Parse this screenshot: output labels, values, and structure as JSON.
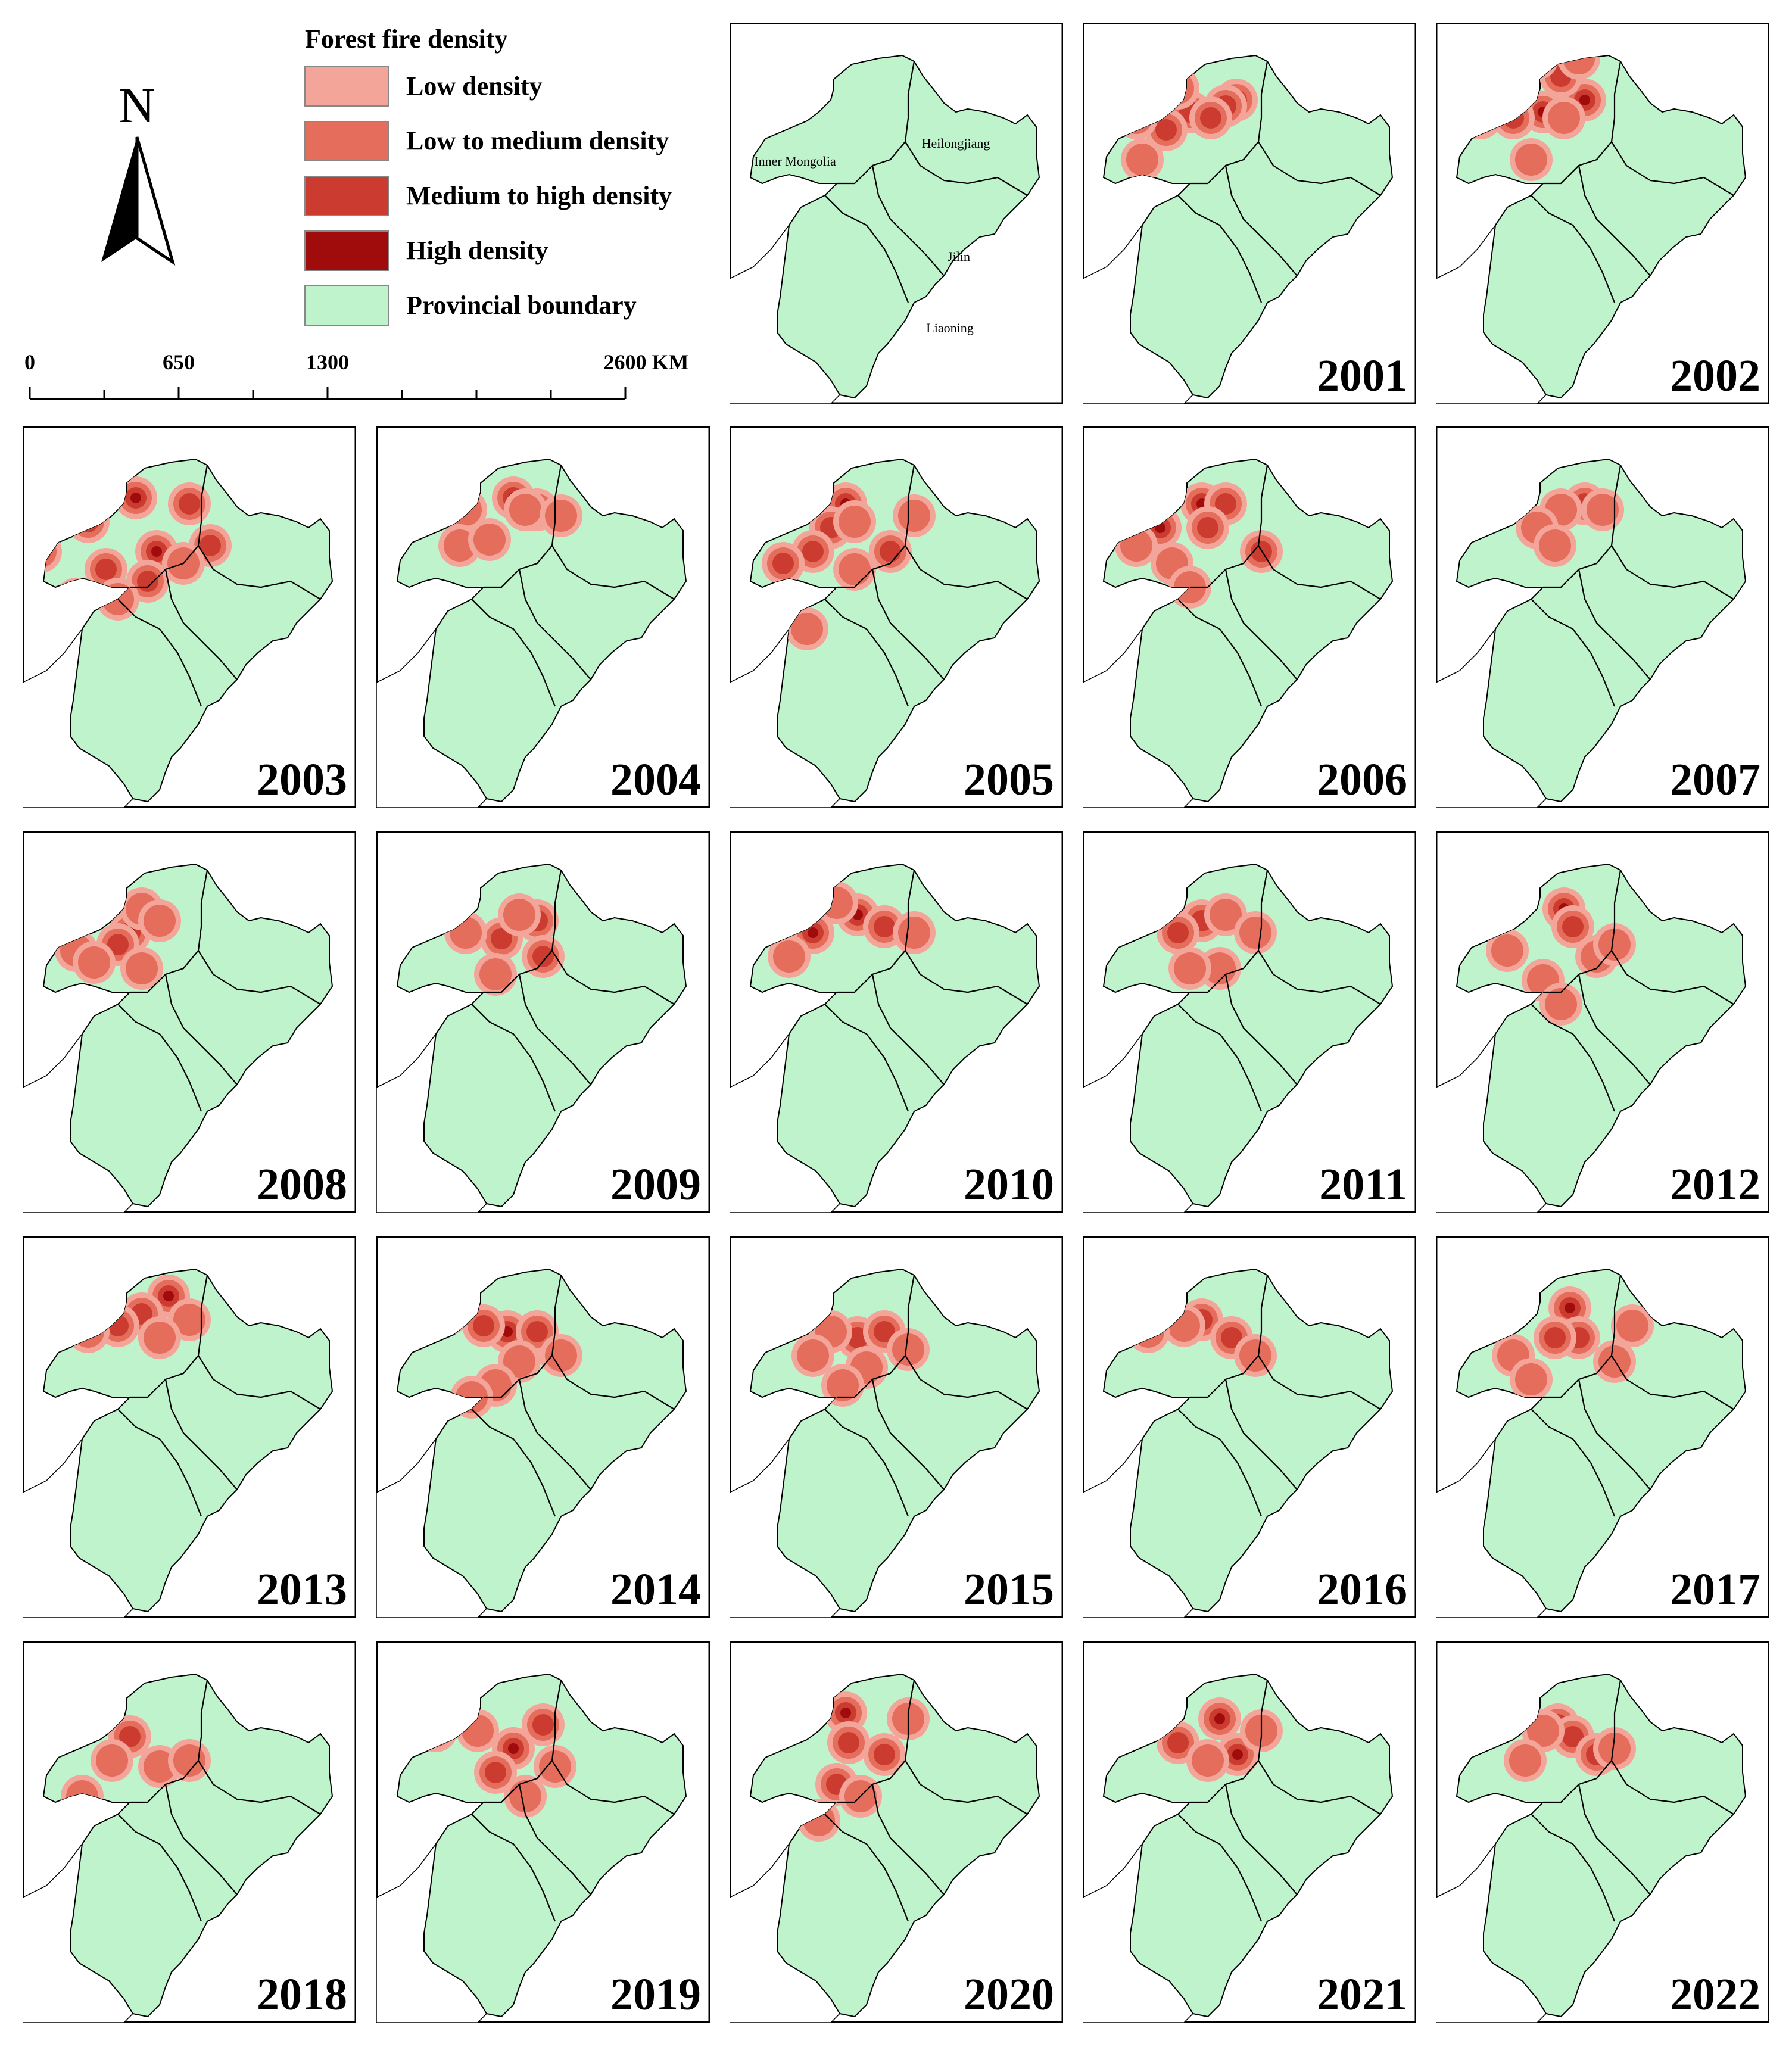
{
  "north_arrow": {
    "label": "N"
  },
  "legend": {
    "title": "Forest fire density",
    "items": [
      {
        "label": "Low density",
        "color": "#f4a59a"
      },
      {
        "label": "Low to medium density",
        "color": "#e46d5c"
      },
      {
        "label": "Medium to high density",
        "color": "#cc3b2f"
      },
      {
        "label": "High density",
        "color": "#a00b0b"
      },
      {
        "label": "Provincial boundary",
        "color": "#bff3cc"
      }
    ]
  },
  "scale_bar": {
    "ticks": [
      "0",
      "650",
      "1300",
      "2600 KM"
    ]
  },
  "reference_map": {
    "province_labels": [
      "Inner Mongolia",
      "Heilongjiang",
      "Jilin",
      "Liaoning"
    ]
  },
  "colors": {
    "land": "#bff3cc",
    "low": "#f4a59a",
    "low_medium": "#e46d5c",
    "medium_high": "#cc3b2f",
    "high": "#a00b0b"
  },
  "maps": [
    {
      "year": "2001",
      "hotspots": [
        [
          258,
          130,
          3
        ],
        [
          180,
          150,
          2
        ],
        [
          240,
          140,
          2
        ],
        [
          215,
          160,
          2
        ],
        [
          140,
          180,
          2
        ],
        [
          90,
          160,
          1
        ],
        [
          110,
          120,
          1
        ],
        [
          160,
          110,
          1
        ],
        [
          100,
          230,
          1
        ]
      ]
    },
    {
      "year": "2002",
      "hotspots": [
        [
          250,
          130,
          3
        ],
        [
          180,
          150,
          3
        ],
        [
          130,
          160,
          2
        ],
        [
          75,
          160,
          2
        ],
        [
          210,
          90,
          2
        ],
        [
          170,
          60,
          1
        ],
        [
          240,
          60,
          1
        ],
        [
          215,
          160,
          1
        ],
        [
          160,
          230,
          1
        ]
      ]
    },
    {
      "year": "2003",
      "hotspots": [
        [
          190,
          120,
          3
        ],
        [
          110,
          160,
          3
        ],
        [
          30,
          210,
          3
        ],
        [
          280,
          130,
          2
        ],
        [
          225,
          210,
          3
        ],
        [
          315,
          200,
          2
        ],
        [
          210,
          260,
          2
        ],
        [
          140,
          240,
          2
        ],
        [
          90,
          290,
          1
        ],
        [
          160,
          290,
          1
        ],
        [
          270,
          230,
          1
        ]
      ]
    },
    {
      "year": "2004",
      "hotspots": [
        [
          230,
          120,
          3
        ],
        [
          270,
          140,
          2
        ],
        [
          250,
          140,
          1
        ],
        [
          150,
          140,
          1
        ],
        [
          140,
          200,
          1
        ],
        [
          190,
          190,
          1
        ],
        [
          310,
          150,
          1
        ]
      ]
    },
    {
      "year": "2005",
      "hotspots": [
        [
          195,
          130,
          3
        ],
        [
          170,
          170,
          2
        ],
        [
          140,
          210,
          2
        ],
        [
          90,
          230,
          2
        ],
        [
          210,
          160,
          1
        ],
        [
          270,
          210,
          2
        ],
        [
          210,
          240,
          1
        ],
        [
          310,
          150,
          1
        ],
        [
          130,
          340,
          1
        ]
      ]
    },
    {
      "year": "2006",
      "hotspots": [
        [
          200,
          130,
          3
        ],
        [
          130,
          170,
          3
        ],
        [
          240,
          130,
          2
        ],
        [
          210,
          170,
          2
        ],
        [
          300,
          210,
          2
        ],
        [
          90,
          200,
          1
        ],
        [
          150,
          230,
          1
        ],
        [
          180,
          270,
          1
        ]
      ]
    },
    {
      "year": "2007",
      "hotspots": [
        [
          250,
          130,
          2
        ],
        [
          210,
          140,
          1
        ],
        [
          280,
          140,
          1
        ],
        [
          170,
          170,
          1
        ],
        [
          200,
          200,
          1
        ],
        [
          110,
          120,
          1
        ]
      ]
    },
    {
      "year": "2008",
      "hotspots": [
        [
          180,
          170,
          3
        ],
        [
          160,
          190,
          2
        ],
        [
          200,
          130,
          1
        ],
        [
          230,
          150,
          1
        ],
        [
          90,
          200,
          1
        ],
        [
          120,
          220,
          1
        ],
        [
          200,
          230,
          1
        ]
      ]
    },
    {
      "year": "2009",
      "hotspots": [
        [
          210,
          180,
          2
        ],
        [
          270,
          150,
          2
        ],
        [
          280,
          210,
          2
        ],
        [
          240,
          140,
          1
        ],
        [
          150,
          170,
          1
        ],
        [
          200,
          240,
          1
        ]
      ]
    },
    {
      "year": "2010",
      "hotspots": [
        [
          215,
          140,
          3
        ],
        [
          140,
          170,
          3
        ],
        [
          260,
          160,
          2
        ],
        [
          180,
          120,
          1
        ],
        [
          100,
          210,
          1
        ],
        [
          310,
          170,
          1
        ]
      ]
    },
    {
      "year": "2011",
      "hotspots": [
        [
          200,
          150,
          2
        ],
        [
          160,
          170,
          2
        ],
        [
          240,
          140,
          1
        ],
        [
          290,
          170,
          1
        ],
        [
          230,
          230,
          1
        ],
        [
          180,
          230,
          1
        ]
      ]
    },
    {
      "year": "2012",
      "hotspots": [
        [
          215,
          130,
          3
        ],
        [
          230,
          160,
          2
        ],
        [
          120,
          200,
          1
        ],
        [
          270,
          210,
          1
        ],
        [
          300,
          190,
          1
        ],
        [
          180,
          250,
          1
        ],
        [
          210,
          290,
          1
        ]
      ]
    },
    {
      "year": "2013",
      "hotspots": [
        [
          245,
          100,
          3
        ],
        [
          200,
          130,
          2
        ],
        [
          160,
          150,
          2
        ],
        [
          110,
          160,
          1
        ],
        [
          280,
          140,
          1
        ],
        [
          230,
          170,
          1
        ]
      ]
    },
    {
      "year": "2014",
      "hotspots": [
        [
          220,
          160,
          3
        ],
        [
          270,
          160,
          2
        ],
        [
          180,
          150,
          2
        ],
        [
          120,
          130,
          2
        ],
        [
          310,
          200,
          1
        ],
        [
          240,
          210,
          1
        ],
        [
          200,
          250,
          1
        ],
        [
          160,
          270,
          1
        ]
      ]
    },
    {
      "year": "2015",
      "hotspots": [
        [
          215,
          170,
          2
        ],
        [
          260,
          160,
          2
        ],
        [
          170,
          160,
          1
        ],
        [
          140,
          200,
          1
        ],
        [
          300,
          190,
          1
        ],
        [
          230,
          220,
          1
        ],
        [
          190,
          250,
          1
        ]
      ]
    },
    {
      "year": "2016",
      "hotspots": [
        [
          200,
          140,
          2
        ],
        [
          250,
          170,
          2
        ],
        [
          170,
          150,
          1
        ],
        [
          110,
          160,
          1
        ],
        [
          290,
          200,
          1
        ]
      ]
    },
    {
      "year": "2017",
      "hotspots": [
        [
          225,
          120,
          3
        ],
        [
          240,
          170,
          2
        ],
        [
          200,
          170,
          2
        ],
        [
          300,
          210,
          1
        ],
        [
          330,
          150,
          1
        ],
        [
          130,
          200,
          1
        ],
        [
          160,
          240,
          1
        ]
      ]
    },
    {
      "year": "2018",
      "hotspots": [
        [
          180,
          160,
          2
        ],
        [
          230,
          210,
          1
        ],
        [
          280,
          200,
          1
        ],
        [
          150,
          200,
          1
        ],
        [
          110,
          120,
          1
        ],
        [
          100,
          260,
          1
        ]
      ]
    },
    {
      "year": "2019",
      "hotspots": [
        [
          230,
          180,
          3
        ],
        [
          280,
          140,
          2
        ],
        [
          200,
          220,
          2
        ],
        [
          170,
          150,
          1
        ],
        [
          100,
          150,
          1
        ],
        [
          300,
          210,
          1
        ],
        [
          250,
          260,
          1
        ]
      ]
    },
    {
      "year": "2020",
      "hotspots": [
        [
          195,
          120,
          3
        ],
        [
          200,
          170,
          2
        ],
        [
          260,
          190,
          2
        ],
        [
          180,
          240,
          2
        ],
        [
          220,
          260,
          1
        ],
        [
          150,
          300,
          1
        ],
        [
          300,
          130,
          1
        ]
      ]
    },
    {
      "year": "2021",
      "hotspots": [
        [
          230,
          130,
          3
        ],
        [
          260,
          190,
          3
        ],
        [
          160,
          170,
          2
        ],
        [
          300,
          150,
          1
        ],
        [
          210,
          200,
          1
        ]
      ]
    },
    {
      "year": "2022",
      "hotspots": [
        [
          205,
          140,
          3
        ],
        [
          230,
          160,
          2
        ],
        [
          270,
          190,
          2
        ],
        [
          180,
          150,
          1
        ],
        [
          300,
          180,
          1
        ],
        [
          150,
          200,
          1
        ]
      ]
    }
  ]
}
